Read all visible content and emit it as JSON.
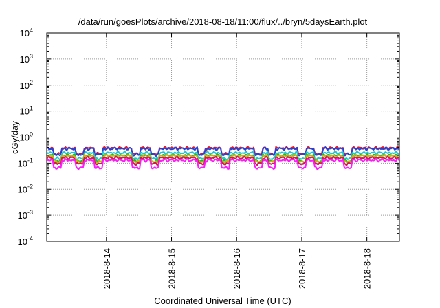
{
  "chart_data": {
    "type": "line",
    "title": "/data/run/goesPlots/archive/2018-08-18/11:00/flux/../bryn/5daysEarth.plot",
    "xlabel": "Coordinated Universal Time (UTC)",
    "ylabel": "cGy/day",
    "yscale": "log",
    "ylim": [
      0.0001,
      10000
    ],
    "xlim": [
      "2018-08-13T02:00",
      "2018-08-18T12:00"
    ],
    "x_ticks": [
      "2018-8-14",
      "2018-8-15",
      "2018-8-16",
      "2018-8-17",
      "2018-8-18"
    ],
    "y_ticks": [
      {
        "base": "10",
        "exp": "-4"
      },
      {
        "base": "10",
        "exp": "-3"
      },
      {
        "base": "10",
        "exp": "-2"
      },
      {
        "base": "10",
        "exp": "-1"
      },
      {
        "base": "10",
        "exp": "0"
      },
      {
        "base": "10",
        "exp": "1"
      },
      {
        "base": "10",
        "exp": "2"
      },
      {
        "base": "10",
        "exp": "3"
      },
      {
        "base": "10",
        "exp": "4"
      }
    ],
    "grid": true,
    "series": [
      {
        "color": "#e0192b",
        "typical": 0.38
      },
      {
        "color": "#2a3fd6",
        "typical": 0.36
      },
      {
        "color": "#19c8d8",
        "typical": 0.25
      },
      {
        "color": "#1db83a",
        "typical": 0.2
      },
      {
        "color": "#c8b800",
        "typical": 0.19
      },
      {
        "color": "#d1194a",
        "typical": 0.16
      },
      {
        "color": "#ff19ff",
        "typical": 0.13
      }
    ],
    "dips": [
      "2018-08-13T06:00",
      "2018-08-13T14:00",
      "2018-08-13T21:00",
      "2018-08-14T11:00",
      "2018-08-14T18:00",
      "2018-08-15T11:00",
      "2018-08-15T20:00",
      "2018-08-16T08:00",
      "2018-08-16T13:00",
      "2018-08-17T00:00",
      "2018-08-17T06:00",
      "2018-08-17T17:00"
    ],
    "dip_factor": 0.6
  }
}
